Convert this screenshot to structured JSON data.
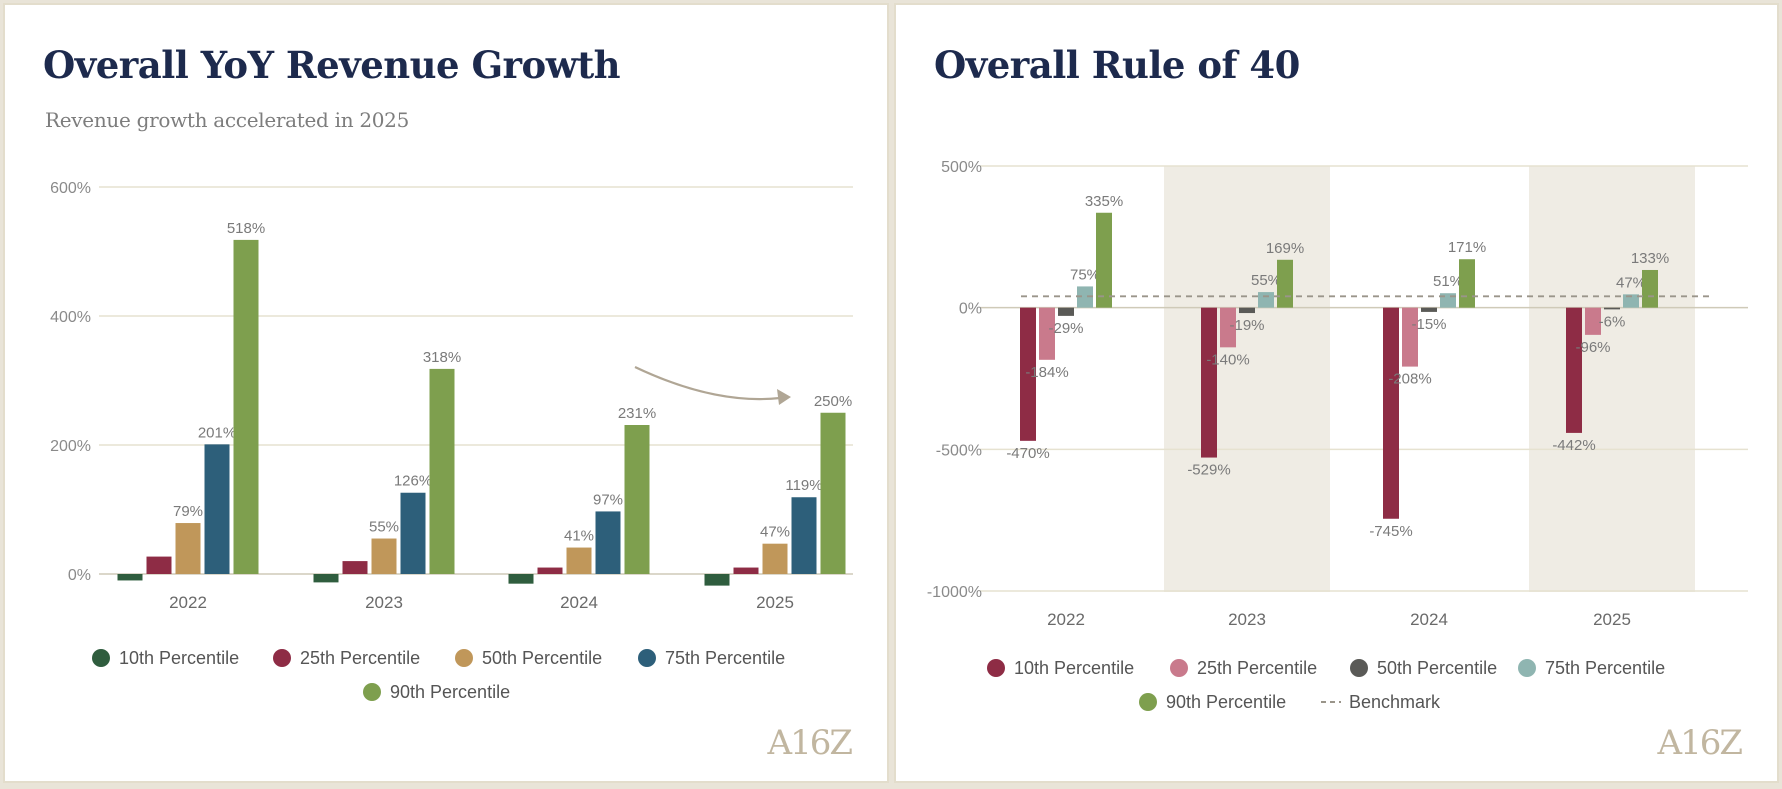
{
  "chart_data": [
    {
      "type": "bar",
      "title": "Overall YoY Revenue Growth",
      "subtitle": "Revenue growth accelerated in 2025",
      "categories": [
        "2022",
        "2023",
        "2024",
        "2025"
      ],
      "y_ticks": [
        "0%",
        "200%",
        "400%",
        "600%"
      ],
      "ylim": [
        0,
        600
      ],
      "grid": true,
      "legend_position": "bottom",
      "series": [
        {
          "name": "10th Percentile",
          "color": "#2f5d3e",
          "values": [
            -10,
            -13,
            -15,
            -18
          ],
          "labels": [
            "",
            "",
            "",
            ""
          ]
        },
        {
          "name": "25th Percentile",
          "color": "#8e2c45",
          "values": [
            27,
            20,
            10,
            10
          ],
          "labels": [
            "",
            "",
            "",
            ""
          ]
        },
        {
          "name": "50th Percentile",
          "color": "#c0975a",
          "values": [
            79,
            55,
            41,
            47
          ],
          "labels": [
            "79%",
            "55%",
            "41%",
            "47%"
          ]
        },
        {
          "name": "75th Percentile",
          "color": "#2d5f7a",
          "values": [
            201,
            126,
            97,
            119
          ],
          "labels": [
            "201%",
            "126%",
            "97%",
            "119%"
          ]
        },
        {
          "name": "90th Percentile",
          "color": "#7e9f4e",
          "values": [
            518,
            318,
            231,
            250
          ],
          "labels": [
            "518%",
            "318%",
            "231%",
            "250%"
          ]
        }
      ],
      "annotation": "curved-arrow-2024-to-2025"
    },
    {
      "type": "bar",
      "title": "Overall Rule of 40",
      "subtitle": "",
      "categories": [
        "2022",
        "2023",
        "2024",
        "2025"
      ],
      "highlighted_categories": [
        "2023",
        "2025"
      ],
      "y_ticks": [
        "-1000%",
        "-500%",
        "0%",
        "500%"
      ],
      "ylim": [
        -1000,
        500
      ],
      "grid": true,
      "legend_position": "bottom",
      "series": [
        {
          "name": "10th Percentile",
          "color": "#8e2c45",
          "values": [
            -470,
            -529,
            -745,
            -442
          ],
          "labels": [
            "-470%",
            "-529%",
            "-745%",
            "-442%"
          ]
        },
        {
          "name": "25th Percentile",
          "color": "#c97a8c",
          "values": [
            -184,
            -140,
            -208,
            -96
          ],
          "labels": [
            "-184%",
            "-140%",
            "-208%",
            "-96%"
          ]
        },
        {
          "name": "50th Percentile",
          "color": "#5a5a57",
          "values": [
            -29,
            -19,
            -15,
            -6
          ],
          "labels": [
            "-29%",
            "-19%",
            "-15%",
            "-6%"
          ]
        },
        {
          "name": "75th Percentile",
          "color": "#8fb5b1",
          "values": [
            75,
            55,
            51,
            47
          ],
          "labels": [
            "75%",
            "55%",
            "51%",
            "47%"
          ]
        },
        {
          "name": "90th Percentile",
          "color": "#7e9f4e",
          "values": [
            335,
            169,
            171,
            133
          ],
          "labels": [
            "335%",
            "169%",
            "171%",
            "133%"
          ]
        }
      ],
      "benchmark": {
        "name": "Benchmark",
        "value": 40,
        "color": "#9a958a",
        "style": "dashed"
      }
    }
  ],
  "logo_text": "A16Z",
  "colors": {
    "gridline": "#e6e2d0",
    "highlight_band": "#efece4",
    "title": "#1d2a4d",
    "arrow": "#b0a695"
  }
}
